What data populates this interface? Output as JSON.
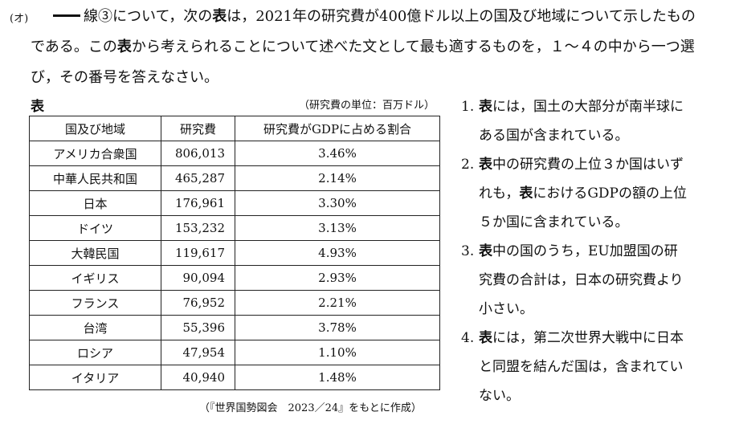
{
  "question": {
    "label": "(オ)",
    "line1": "線③について，次の表は，2021年の研究費が400億ドル以上の国及び地域について示したもの",
    "line2": "である。この表から考えられることについて述べた文として最も適するものを，１～４の中から一つ選",
    "line3": "び，その番号を答えなさい。"
  },
  "table": {
    "title": "表",
    "unit": "（研究費の単位：百万ドル）",
    "headers": [
      "国及び地域",
      "研究費",
      "研究費がGDPに占める割合"
    ],
    "rows": [
      [
        "アメリカ合衆国",
        "806,013",
        "3.46%"
      ],
      [
        "中華人民共和国",
        "465,287",
        "2.14%"
      ],
      [
        "日本",
        "176,961",
        "3.30%"
      ],
      [
        "ドイツ",
        "153,232",
        "3.13%"
      ],
      [
        "大韓民国",
        "119,617",
        "4.93%"
      ],
      [
        "イギリス",
        "90,094",
        "2.93%"
      ],
      [
        "フランス",
        "76,952",
        "2.21%"
      ],
      [
        "台湾",
        "55,396",
        "3.78%"
      ],
      [
        "ロシア",
        "47,954",
        "1.10%"
      ],
      [
        "イタリア",
        "40,940",
        "1.48%"
      ]
    ],
    "source": "（『世界国勢図会　2023／24』をもとに作成）"
  },
  "options": [
    {
      "num": "1.",
      "lines": [
        "表には，国土の大部分が南半球に",
        "ある国が含まれている。"
      ]
    },
    {
      "num": "2.",
      "lines": [
        "表中の研究費の上位３か国はいず",
        "れも，表におけるGDPの額の上位",
        "５か国に含まれている。"
      ]
    },
    {
      "num": "3.",
      "lines": [
        "表中の国のうち，EU加盟国の研",
        "究費の合計は，日本の研究費より",
        "小さい。"
      ]
    },
    {
      "num": "4.",
      "lines": [
        "表には，第二次世界大戦中に日本",
        "と同盟を結んだ国は，含まれてい",
        "ない。"
      ]
    }
  ]
}
